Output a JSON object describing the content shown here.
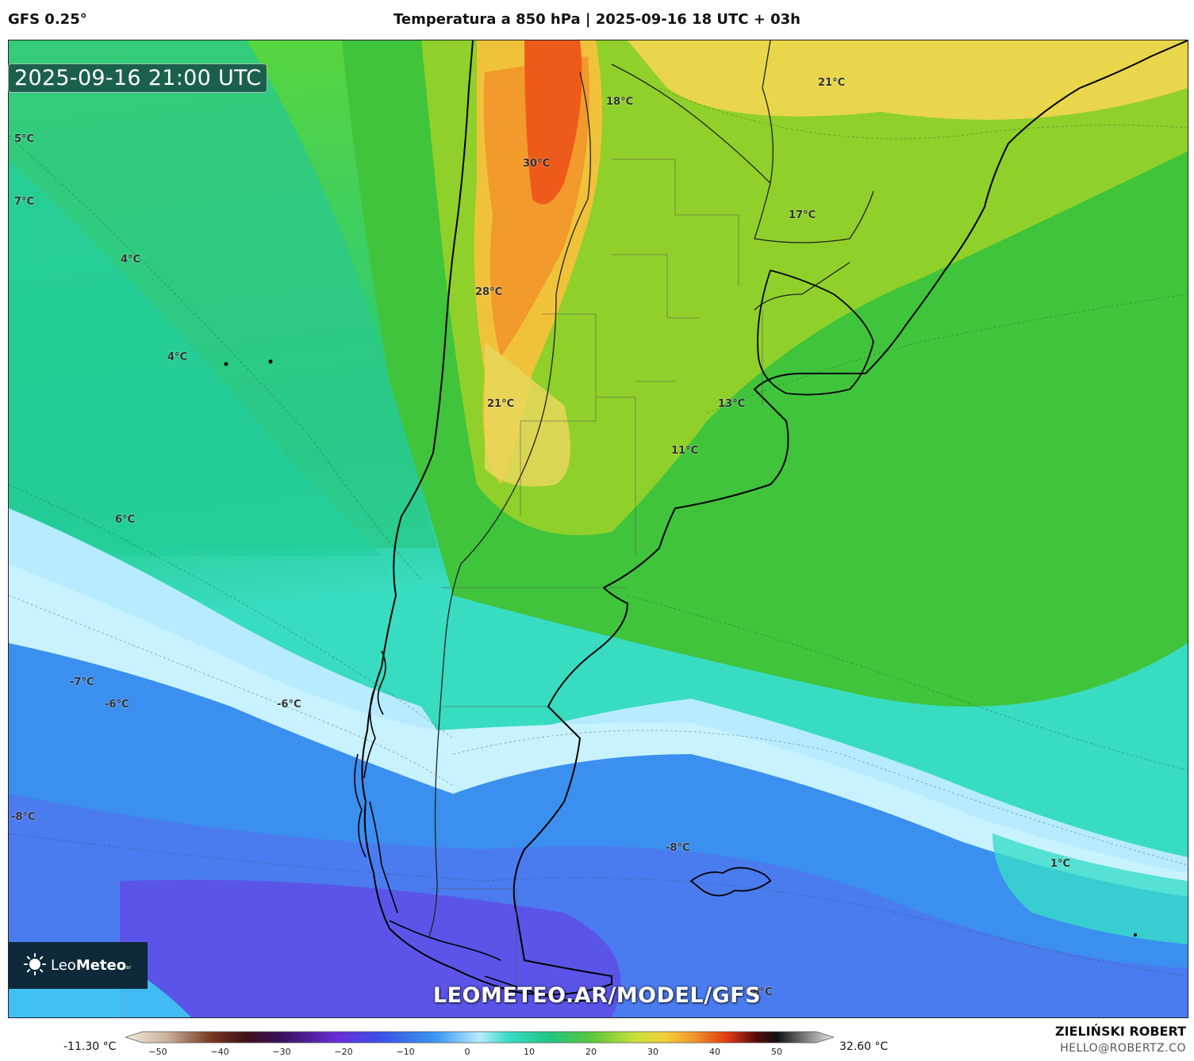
{
  "header": {
    "model": "GFS 0.25°",
    "title": "Temperatura a 850 hPa | 2025-09-16 18 UTC + 03h"
  },
  "map": {
    "valid_time": "2025-09-16 21:00 UTC",
    "watermark": "LEOMETEO.AR/MODEL/GFS",
    "brand": {
      "light": "Leo",
      "bold": "Meteo",
      "sup": ".ar"
    },
    "labels": [
      "5°C",
      "7°C",
      "4°C",
      "4°C",
      "6°C",
      "-7°C",
      "-6°C",
      "-6°C",
      "-8°C",
      "30°C",
      "28°C",
      "21°C",
      "18°C",
      "21°C",
      "17°C",
      "13°C",
      "11°C",
      "-8°C",
      "1°C",
      "-8°C"
    ],
    "colors": {
      "hot": "#e8561c",
      "warm": "#f2c64a",
      "mild": "#9ccf2a",
      "green": "#34c24a",
      "teal": "#2fd9b0",
      "pale": "#b8ecff",
      "cold": "#3a8df0",
      "colder": "#5a52e8"
    }
  },
  "colorbar": {
    "min_label": "-11.30 °C",
    "max_label": "32.60 °C",
    "ticks": [
      "−50",
      "−40",
      "−30",
      "−20",
      "−10",
      "0",
      "10",
      "20",
      "30",
      "40",
      "50"
    ]
  },
  "credits": {
    "author": "ZIELIŃSKI ROBERT",
    "contact": "HELLO@ROBERTZ.CO"
  }
}
